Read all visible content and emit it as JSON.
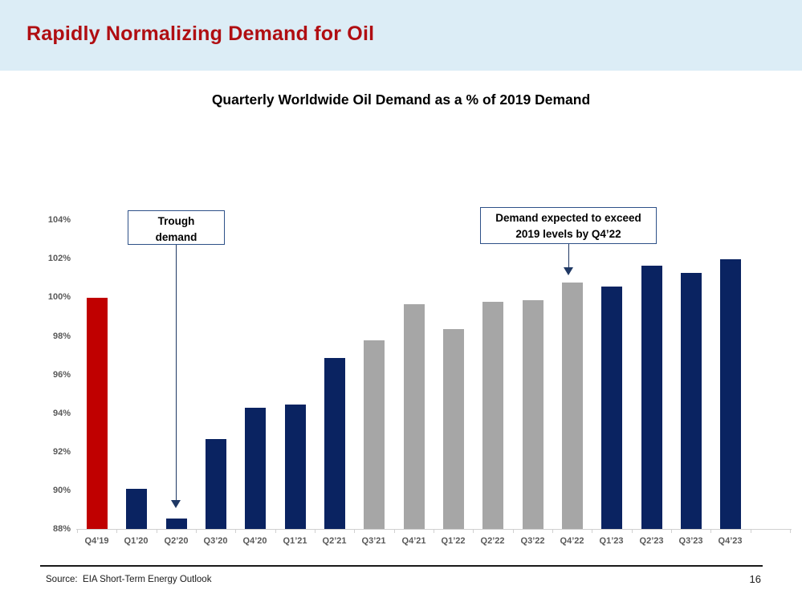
{
  "slide": {
    "header": {
      "title": "Rapidly Normalizing Demand for Oil",
      "background_color": "#DCEDF6",
      "title_color": "#B00E12"
    },
    "footer": {
      "source": "Source:  EIA Short-Term Energy Outlook",
      "page_number": "16"
    }
  },
  "annotations": {
    "trough": {
      "lines": [
        "Trough",
        "demand"
      ]
    },
    "exceed": {
      "lines": [
        "Demand expected to exceed",
        "2019 levels by Q4’22"
      ]
    }
  },
  "chart_data": {
    "type": "bar",
    "title": "Quarterly Worldwide Oil Demand as a % of 2019 Demand",
    "xlabel": "",
    "ylabel": "",
    "ylim": [
      88,
      105
    ],
    "grid": false,
    "legend_position": "none",
    "y_tick_values": [
      104,
      102,
      100,
      98,
      96,
      94,
      92,
      90,
      88
    ],
    "y_tick_suffix": "%",
    "categories": [
      "Q4’19",
      "Q1’20",
      "Q2’20",
      "Q3’20",
      "Q4’20",
      "Q1’21",
      "Q2’21",
      "Q3’21",
      "Q4’21",
      "Q1’22",
      "Q2’22",
      "Q3’22",
      "Q4’22",
      "Q1’23",
      "Q2’23",
      "Q3’23",
      "Q4’23"
    ],
    "values": [
      100.0,
      90.1,
      88.6,
      92.7,
      94.3,
      94.5,
      96.9,
      97.8,
      99.7,
      98.4,
      99.8,
      99.9,
      100.8,
      100.6,
      101.7,
      101.3,
      102.0
    ],
    "bar_roles": [
      "highlight",
      "actual",
      "actual",
      "actual",
      "actual",
      "actual",
      "actual",
      "forecast",
      "forecast",
      "forecast",
      "forecast",
      "forecast",
      "forecast",
      "actual",
      "actual",
      "actual",
      "actual"
    ],
    "palette": {
      "highlight": "#C00000",
      "actual": "#0A2361",
      "forecast": "#A6A6A6"
    },
    "axis_label_color": "#595959",
    "axis_line_color": "#D0D0D0"
  }
}
